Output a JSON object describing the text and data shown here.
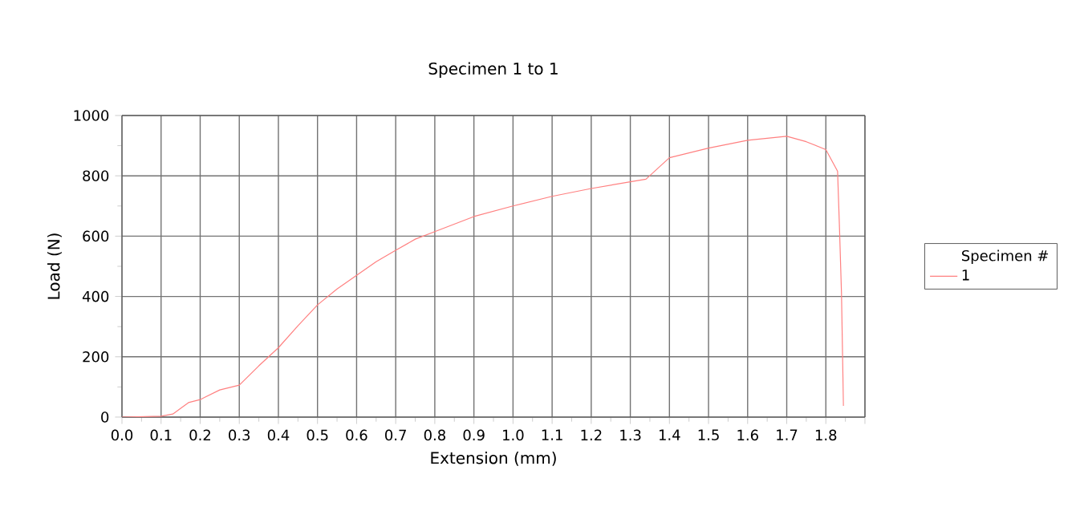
{
  "chart_data": {
    "type": "line",
    "title": "Specimen 1 to 1",
    "xlabel": "Extension (mm)",
    "ylabel": "Load (N)",
    "legend_title": "Specimen #",
    "xlim": [
      0,
      1.9
    ],
    "ylim": [
      0,
      1000
    ],
    "xticks": [
      {
        "value": 0,
        "label": "0.0"
      },
      {
        "value": 0.1,
        "label": "0.1"
      },
      {
        "value": 0.2,
        "label": "0.2"
      },
      {
        "value": 0.3,
        "label": "0.3"
      },
      {
        "value": 0.4,
        "label": "0.4"
      },
      {
        "value": 0.5,
        "label": "0.5"
      },
      {
        "value": 0.6,
        "label": "0.6"
      },
      {
        "value": 0.7,
        "label": "0.7"
      },
      {
        "value": 0.8,
        "label": "0.8"
      },
      {
        "value": 0.9,
        "label": "0.9"
      },
      {
        "value": 1,
        "label": "1.0"
      },
      {
        "value": 1.1,
        "label": "1.1"
      },
      {
        "value": 1.2,
        "label": "1.2"
      },
      {
        "value": 1.3,
        "label": "1.3"
      },
      {
        "value": 1.4,
        "label": "1.4"
      },
      {
        "value": 1.5,
        "label": "1.5"
      },
      {
        "value": 1.6,
        "label": "1.6"
      },
      {
        "value": 1.7,
        "label": "1.7"
      },
      {
        "value": 1.8,
        "label": "1.8"
      },
      {
        "value": 1.9,
        "label": null
      }
    ],
    "yticks": [
      0,
      200,
      400,
      600,
      800,
      1000
    ],
    "grid": true,
    "legend": "right",
    "series": [
      {
        "name": "1",
        "color": "#ff8080",
        "x": [
          0,
          0.1,
          0.13,
          0.17,
          0.2,
          0.25,
          0.3,
          0.35,
          0.4,
          0.45,
          0.5,
          0.55,
          0.6,
          0.65,
          0.7,
          0.75,
          0.8,
          0.9,
          1.0,
          1.1,
          1.2,
          1.3,
          1.34,
          1.4,
          1.5,
          1.6,
          1.7,
          1.75,
          1.8,
          1.83,
          1.835,
          1.84,
          1.845
        ],
        "values": [
          0,
          3,
          10,
          48,
          58,
          90,
          106,
          170,
          230,
          303,
          372,
          425,
          470,
          515,
          553,
          590,
          615,
          665,
          700,
          732,
          758,
          780,
          789,
          860,
          892,
          918,
          931,
          913,
          887,
          815,
          622,
          410,
          37
        ]
      }
    ]
  }
}
